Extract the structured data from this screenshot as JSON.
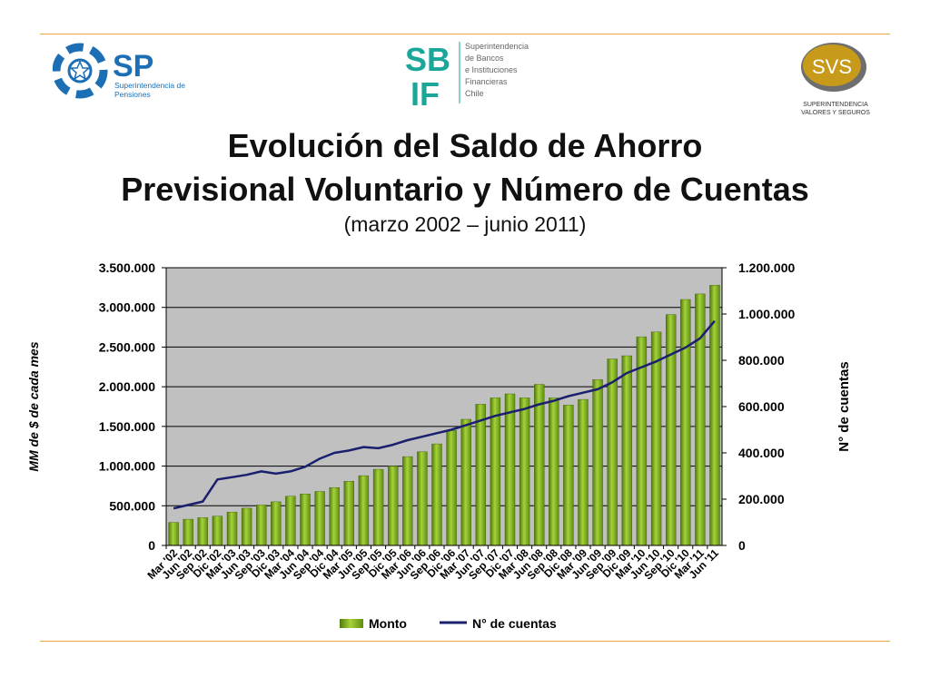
{
  "logos": {
    "sp": {
      "initials": "SP",
      "line1": "Superintendencia de",
      "line2": "Pensiones",
      "color": "#1d6fb5"
    },
    "sbif": {
      "initials_top": "SB",
      "initials_bottom": "IF",
      "lines": [
        "Superintendencia",
        "de Bancos",
        "e Instituciones",
        "Financieras",
        "Chile"
      ],
      "color": "#1aa79a"
    },
    "svs": {
      "initials": "SVS",
      "line1": "SUPERINTENDENCIA",
      "line2": "VALORES Y SEGUROS",
      "color": "#c79a1a"
    }
  },
  "header": {
    "title_line1": "Evolución del Saldo de Ahorro",
    "title_line2": "Previsional Voluntario y Número de Cuentas",
    "subtitle": "(marzo 2002 – junio 2011)"
  },
  "chart_data": {
    "type": "bar",
    "title": "Evolución del Saldo de Ahorro Previsional Voluntario y Número de Cuentas",
    "subtitle": "(marzo 2002 – junio 2011)",
    "categories": [
      "Mar '02",
      "Jun '02",
      "Sep '02",
      "Dic '02",
      "Mar '03",
      "Jun '03",
      "Sep '03",
      "Dic '03",
      "Mar '04",
      "Jun '04",
      "Sep '04",
      "Dic '04",
      "Mar '05",
      "Jun '05",
      "Sep '05",
      "Dic '05",
      "Mar '06",
      "Jun '06",
      "Sep '06",
      "Dic '06",
      "Mar '07",
      "Jun '07",
      "Sep '07",
      "Dic '07",
      "Mar '08",
      "Jun '08",
      "Sep '08",
      "Dic '08",
      "Mar '09",
      "Jun '09",
      "Sep '09",
      "Dic '09",
      "Mar '10",
      "Jun '10",
      "Sep '10",
      "Dic '10",
      "Mar '11",
      "Jun '11"
    ],
    "series": [
      {
        "name": "Monto",
        "kind": "bar",
        "axis": "left",
        "color": "#7aa61c",
        "values": [
          290000,
          330000,
          350000,
          370000,
          420000,
          470000,
          510000,
          550000,
          620000,
          650000,
          680000,
          730000,
          810000,
          880000,
          960000,
          1000000,
          1120000,
          1180000,
          1280000,
          1450000,
          1590000,
          1780000,
          1860000,
          1910000,
          1860000,
          2030000,
          1860000,
          1770000,
          1840000,
          2090000,
          2350000,
          2390000,
          2630000,
          2690000,
          2910000,
          3100000,
          3170000,
          3280000
        ]
      },
      {
        "name": "N° de cuentas",
        "kind": "line",
        "axis": "right",
        "color": "#1a1f6e",
        "values": [
          160000,
          175000,
          190000,
          285000,
          295000,
          305000,
          320000,
          310000,
          320000,
          340000,
          375000,
          400000,
          410000,
          425000,
          420000,
          435000,
          455000,
          470000,
          485000,
          500000,
          520000,
          540000,
          560000,
          575000,
          590000,
          610000,
          625000,
          645000,
          660000,
          675000,
          705000,
          745000,
          770000,
          795000,
          825000,
          855000,
          895000,
          970000
        ]
      }
    ],
    "ylabel": "MM de $ de cada mes",
    "y2label": "N° de cuentas",
    "ylim": [
      0,
      3500000
    ],
    "y2lim": [
      0,
      1200000
    ],
    "yticks": [
      "0",
      "500.000",
      "1.000.000",
      "1.500.000",
      "2.000.000",
      "2.500.000",
      "3.000.000",
      "3.500.000"
    ],
    "y2ticks": [
      "0",
      "200.000",
      "400.000",
      "600.000",
      "800.000",
      "1.000.000",
      "1.200.000"
    ],
    "grid": true,
    "legend_position": "bottom",
    "plot_background": "#c0c0c0"
  }
}
